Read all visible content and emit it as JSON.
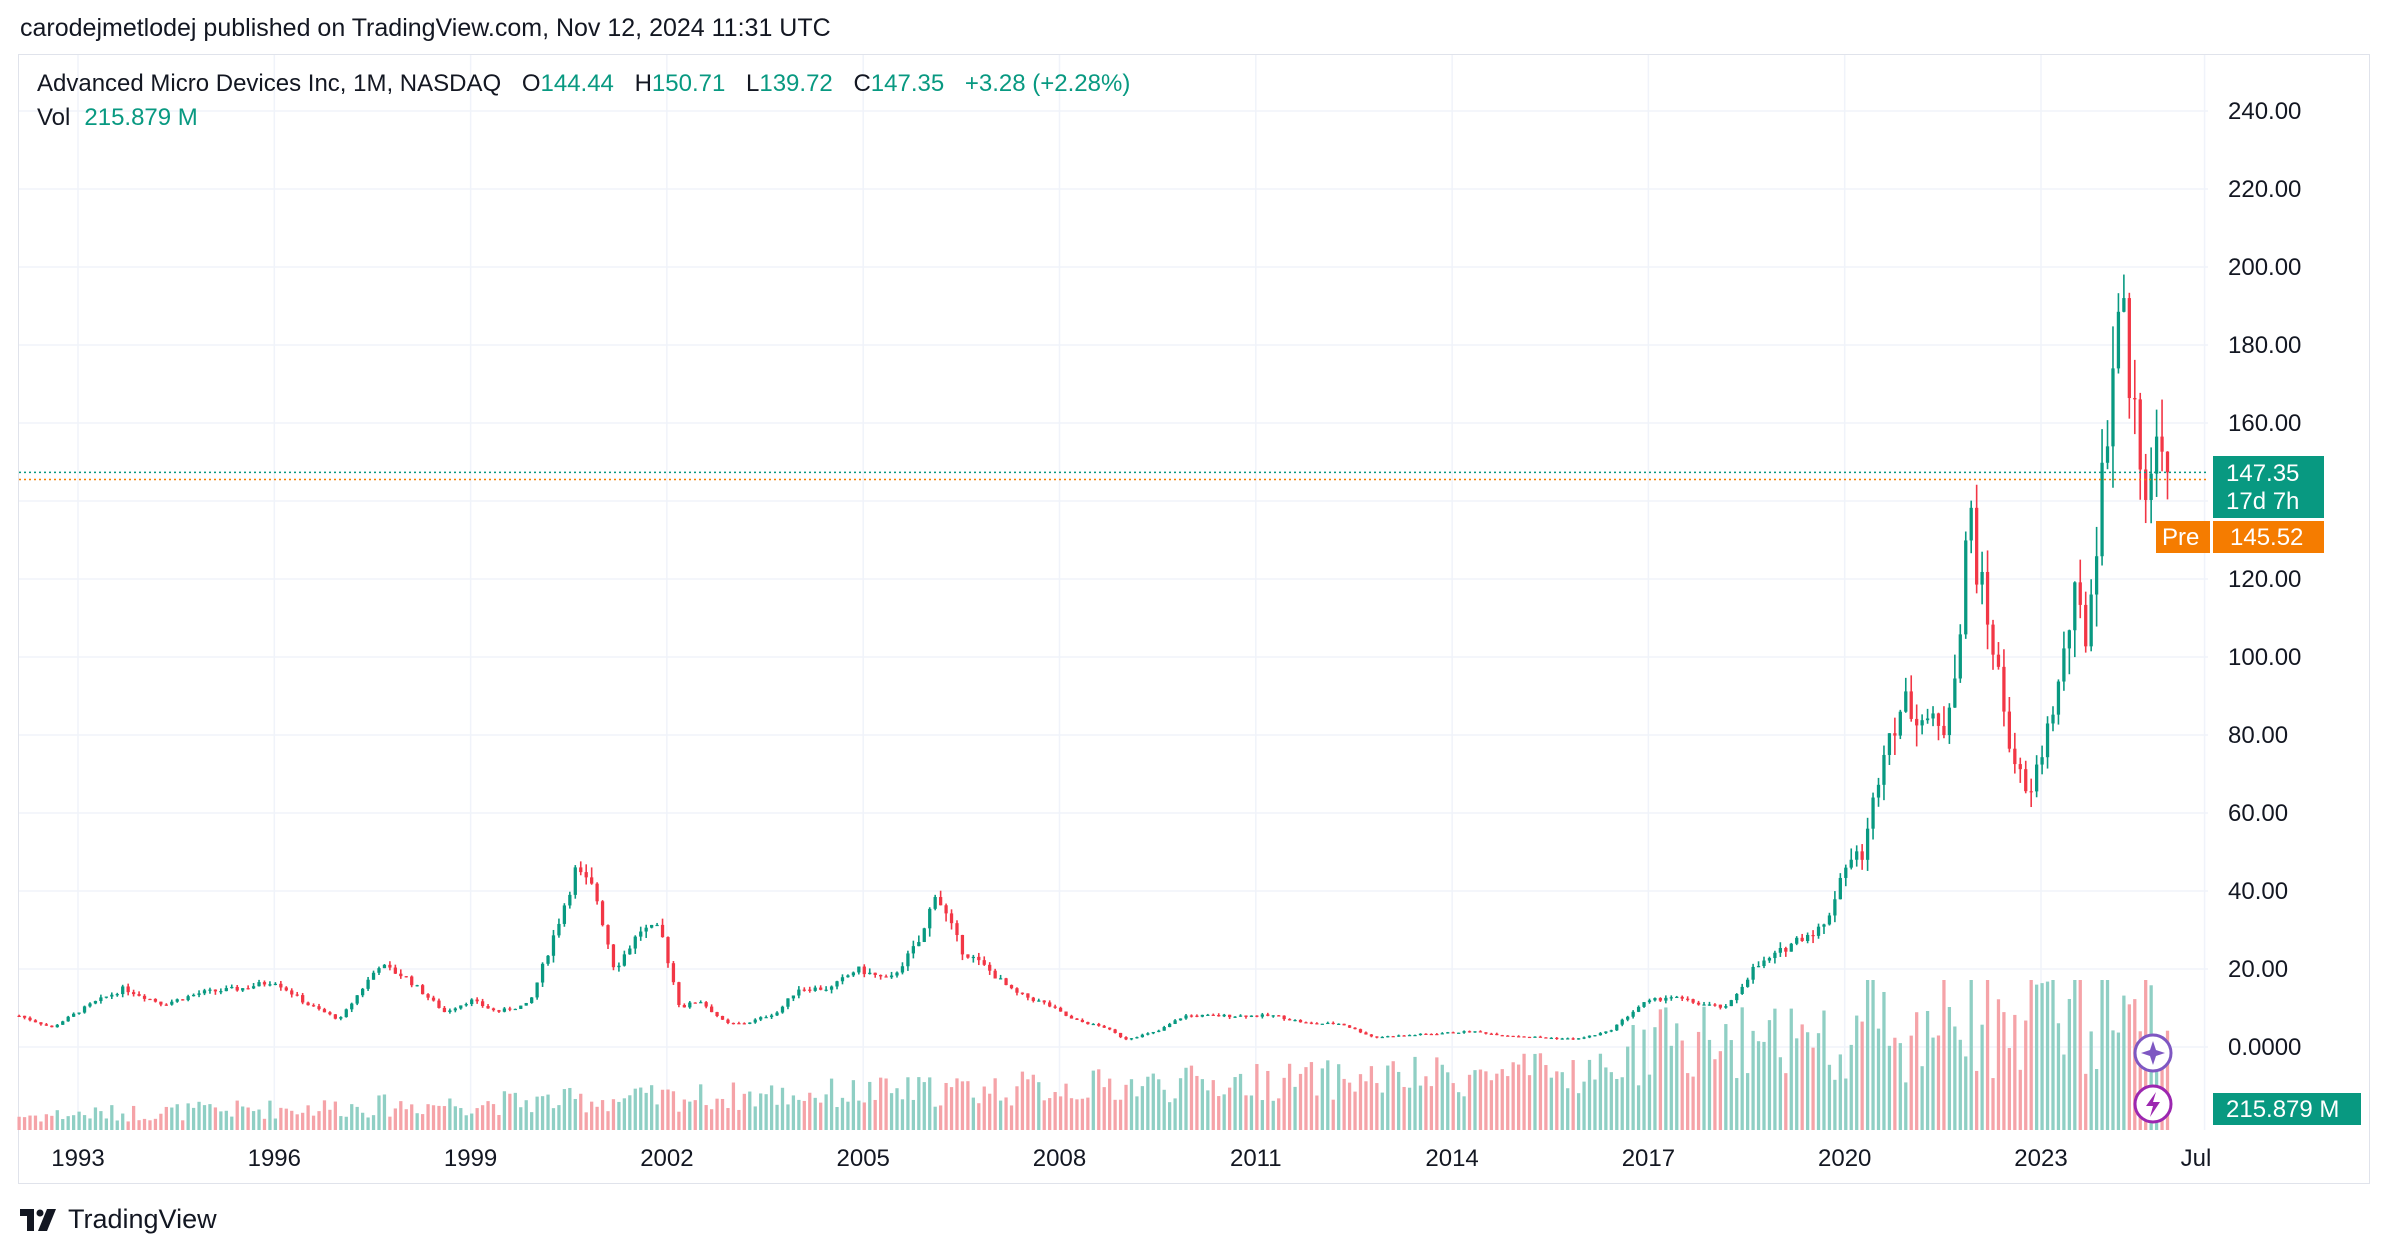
{
  "header": {
    "publisher_line": "carodejmetlodej published on TradingView.com, Nov 12, 2024 11:31 UTC"
  },
  "legend": {
    "symbol": "Advanced Micro Devices Inc, 1M, NASDAQ",
    "open_label": "O",
    "open": "144.44",
    "high_label": "H",
    "high": "150.71",
    "low_label": "L",
    "low": "139.72",
    "close_label": "C",
    "close": "147.35",
    "change": "+3.28 (+2.28%)",
    "vol_label": "Vol",
    "vol": "215.879 M"
  },
  "badges": {
    "last_price": "147.35",
    "countdown": "17d 7h",
    "pre_label": "Pre",
    "pre_price": "145.52",
    "volume": "215.879 M"
  },
  "footer": {
    "brand": "TradingView"
  },
  "colors": {
    "up": "#089981",
    "down": "#f23645",
    "up_vol": "#8fcfc4",
    "down_vol": "#f5a3a8",
    "pre": "#f57c00",
    "grid": "#f0f3fa",
    "axis_text": "#131722",
    "icon": "#7e57c2"
  },
  "icons": [
    "sparkle-icon",
    "lightning-icon",
    "tradingview-logo-icon"
  ],
  "chart_data": {
    "type": "candlestick",
    "title": "Advanced Micro Devices Inc, 1M, NASDAQ",
    "ylim": [
      -5,
      245
    ],
    "xlim": [
      1992.1,
      2025.8
    ],
    "grid": true,
    "y_ticks": [
      "240.00",
      "220.00",
      "200.00",
      "180.00",
      "160.00",
      "140.00",
      "120.00",
      "100.00",
      "80.00",
      "60.00",
      "40.00",
      "20.00",
      "0.0000"
    ],
    "y_tick_values": [
      240,
      220,
      200,
      180,
      160,
      140,
      120,
      100,
      80,
      60,
      40,
      20,
      0
    ],
    "x_ticks": [
      {
        "label": "1993",
        "value": 1993
      },
      {
        "label": "1996",
        "value": 1996
      },
      {
        "label": "1999",
        "value": 1999
      },
      {
        "label": "2002",
        "value": 2002
      },
      {
        "label": "2005",
        "value": 2005
      },
      {
        "label": "2008",
        "value": 2008
      },
      {
        "label": "2011",
        "value": 2011
      },
      {
        "label": "2014",
        "value": 2014
      },
      {
        "label": "2017",
        "value": 2017
      },
      {
        "label": "2020",
        "value": 2020
      },
      {
        "label": "2023",
        "value": 2023
      },
      {
        "label": "Jul",
        "value": 2025.5
      }
    ],
    "price_points": [
      [
        1992.1,
        8
      ],
      [
        1992.6,
        5
      ],
      [
        1993.2,
        11
      ],
      [
        1993.7,
        15
      ],
      [
        1994.3,
        11
      ],
      [
        1994.9,
        14
      ],
      [
        1995.5,
        15
      ],
      [
        1996.0,
        17
      ],
      [
        1996.5,
        11
      ],
      [
        1997.0,
        7
      ],
      [
        1997.6,
        21
      ],
      [
        1998.0,
        18
      ],
      [
        1998.6,
        9
      ],
      [
        1999.0,
        12
      ],
      [
        1999.4,
        9
      ],
      [
        1999.9,
        11
      ],
      [
        2000.3,
        30
      ],
      [
        2000.6,
        45
      ],
      [
        2000.9,
        40
      ],
      [
        2001.2,
        20
      ],
      [
        2001.6,
        30
      ],
      [
        2001.9,
        30
      ],
      [
        2002.2,
        10
      ],
      [
        2002.5,
        12
      ],
      [
        2002.9,
        6
      ],
      [
        2003.2,
        6
      ],
      [
        2003.7,
        9
      ],
      [
        2004.0,
        15
      ],
      [
        2004.5,
        15
      ],
      [
        2004.9,
        20
      ],
      [
        2005.4,
        17
      ],
      [
        2005.9,
        28
      ],
      [
        2006.1,
        40
      ],
      [
        2006.5,
        25
      ],
      [
        2006.9,
        20
      ],
      [
        2007.3,
        14
      ],
      [
        2007.8,
        11
      ],
      [
        2008.2,
        7
      ],
      [
        2008.7,
        5
      ],
      [
        2009.0,
        2
      ],
      [
        2009.5,
        4
      ],
      [
        2009.9,
        8
      ],
      [
        2010.4,
        8
      ],
      [
        2010.9,
        8
      ],
      [
        2011.3,
        8
      ],
      [
        2011.8,
        6
      ],
      [
        2012.3,
        6
      ],
      [
        2012.8,
        2.5
      ],
      [
        2013.3,
        3
      ],
      [
        2013.8,
        3.5
      ],
      [
        2014.3,
        4
      ],
      [
        2014.8,
        3
      ],
      [
        2015.3,
        2.5
      ],
      [
        2015.9,
        2
      ],
      [
        2016.4,
        4
      ],
      [
        2016.9,
        11
      ],
      [
        2017.3,
        13
      ],
      [
        2017.8,
        11
      ],
      [
        2018.2,
        10
      ],
      [
        2018.6,
        20
      ],
      [
        2018.9,
        23
      ],
      [
        2019.3,
        28
      ],
      [
        2019.7,
        31
      ],
      [
        2020.0,
        47
      ],
      [
        2020.3,
        50
      ],
      [
        2020.6,
        78
      ],
      [
        2020.9,
        88
      ],
      [
        2021.2,
        85
      ],
      [
        2021.5,
        80
      ],
      [
        2021.8,
        110
      ],
      [
        2021.9,
        143
      ],
      [
        2022.0,
        125
      ],
      [
        2022.3,
        100
      ],
      [
        2022.5,
        80
      ],
      [
        2022.8,
        62
      ],
      [
        2023.0,
        75
      ],
      [
        2023.3,
        95
      ],
      [
        2023.5,
        115
      ],
      [
        2023.7,
        105
      ],
      [
        2023.9,
        140
      ],
      [
        2024.1,
        175
      ],
      [
        2024.2,
        195
      ],
      [
        2024.4,
        165
      ],
      [
        2024.6,
        145
      ],
      [
        2024.8,
        155
      ],
      [
        2024.9,
        147.35
      ]
    ]
  }
}
